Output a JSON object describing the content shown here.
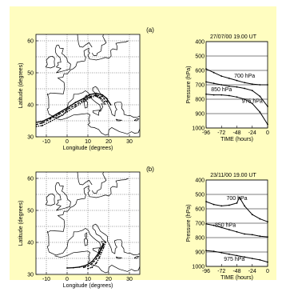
{
  "background_color": "#fffdc0",
  "panels": [
    {
      "label": "(a)",
      "date_time": "27/07/00  19.00 UT",
      "map": {
        "xlabel": "Longitude (degrees)",
        "ylabel": "Latitude (degrees)",
        "xticks": [
          "-10",
          "0",
          "10",
          "20",
          "30"
        ],
        "yticks": [
          "30",
          "40",
          "50",
          "60"
        ]
      }
    },
    {
      "label": "(b)",
      "date_time": "23/11/00  19.00 UT",
      "map": {
        "xlabel": "Longitude (degrees)",
        "ylabel": "Latitude (degrees)",
        "xticks": [
          "-10",
          "0",
          "10",
          "20",
          "30"
        ],
        "yticks": [
          "30",
          "40",
          "50",
          "60"
        ]
      }
    }
  ],
  "chart_data": [
    {
      "type": "line",
      "title": "(a)",
      "xlabel": "Longitude (degrees)",
      "ylabel": "Latitude (degrees)",
      "xlim": [
        -15,
        35
      ],
      "ylim": [
        30,
        62
      ],
      "series": [
        {
          "name": "700 hPa",
          "x": [
            -15,
            -12,
            -8,
            -4,
            0,
            4,
            8,
            11,
            14,
            17,
            19,
            21
          ],
          "y": [
            34.5,
            34.8,
            36,
            37.5,
            39,
            40.7,
            42,
            43.2,
            43.6,
            43.1,
            42,
            40
          ]
        },
        {
          "name": "850 hPa",
          "x": [
            -15,
            -12,
            -8,
            -4,
            0,
            4,
            8,
            11,
            14,
            17,
            19
          ],
          "y": [
            33.8,
            34.3,
            35.6,
            37,
            38.5,
            40,
            41.5,
            42.6,
            43.1,
            42.6,
            41
          ]
        },
        {
          "name": "975 hPa",
          "x": [
            -15,
            -12,
            -8,
            -4,
            0,
            4,
            8,
            11,
            14,
            16,
            18
          ],
          "y": [
            33.2,
            33.5,
            34.8,
            36.2,
            37.8,
            39.4,
            41,
            42.2,
            42.8,
            42.3,
            41
          ]
        }
      ]
    },
    {
      "type": "line",
      "title": "27/07/00  19.00 UT",
      "xlabel": "TIME (hours)",
      "ylabel": "Pressure (hPa)",
      "xticks": [
        -96,
        -72,
        -48,
        -24,
        0
      ],
      "yticks": [
        400,
        500,
        600,
        700,
        800,
        900,
        1000
      ],
      "xlim": [
        -96,
        0
      ],
      "ylim": [
        1000,
        400
      ],
      "annotations": [
        "700 hPa",
        "850 hPa",
        "975 hPa"
      ],
      "series": [
        {
          "name": "700 hPa",
          "x": [
            -96,
            -84,
            -72,
            -60,
            -48,
            -36,
            -24,
            -12,
            0
          ],
          "y": [
            590,
            615,
            640,
            655,
            670,
            685,
            695,
            700,
            700
          ]
        },
        {
          "name": "850 hPa",
          "x": [
            -96,
            -84,
            -72,
            -60,
            -48,
            -36,
            -24,
            -12,
            0
          ],
          "y": [
            680,
            690,
            700,
            710,
            715,
            725,
            740,
            780,
            850
          ]
        },
        {
          "name": "975 hPa",
          "x": [
            -96,
            -84,
            -72,
            -60,
            -48,
            -36,
            -24,
            -12,
            0
          ],
          "y": [
            765,
            770,
            770,
            775,
            785,
            800,
            830,
            890,
            975
          ]
        }
      ]
    },
    {
      "type": "line",
      "title": "(b)",
      "xlabel": "Longitude (degrees)",
      "ylabel": "Latitude (degrees)",
      "xlim": [
        -15,
        35
      ],
      "ylim": [
        30,
        62
      ],
      "series": [
        {
          "name": "700 hPa",
          "x": [
            0,
            3,
            6,
            9,
            12,
            14,
            16,
            17.5
          ],
          "y": [
            32,
            32.1,
            32.3,
            32.8,
            34,
            35.6,
            37.5,
            39.2
          ]
        },
        {
          "name": "850 hPa",
          "x": [
            8,
            10,
            12,
            14,
            15.5,
            16.5,
            17.5
          ],
          "y": [
            32.2,
            32.6,
            33.4,
            34.8,
            36.4,
            38,
            39.6
          ]
        },
        {
          "name": "975 hPa",
          "x": [
            10,
            12,
            14,
            15.5,
            16.5,
            17.5,
            18.5
          ],
          "y": [
            31.8,
            32.2,
            33.5,
            35.2,
            36.8,
            38.3,
            40
          ]
        }
      ]
    },
    {
      "type": "line",
      "title": "23/11/00  19.00 UT",
      "xlabel": "TIME (hours)",
      "ylabel": "Pressure (hPa)",
      "xticks": [
        -96,
        -72,
        -48,
        -24,
        0
      ],
      "yticks": [
        400,
        500,
        600,
        700,
        800,
        900,
        1000
      ],
      "xlim": [
        -96,
        0
      ],
      "ylim": [
        1000,
        400
      ],
      "annotations": [
        "700 hPa",
        "850 hPa",
        "975 hPa"
      ],
      "series": [
        {
          "name": "700 hPa",
          "x": [
            -96,
            -84,
            -72,
            -60,
            -48,
            -44,
            -36,
            -24,
            -12,
            0
          ],
          "y": [
            550,
            570,
            580,
            575,
            560,
            520,
            580,
            640,
            670,
            690
          ]
        },
        {
          "name": "850 hPa",
          "x": [
            -96,
            -84,
            -72,
            -60,
            -48,
            -36,
            -24,
            -12,
            0
          ],
          "y": [
            705,
            715,
            730,
            745,
            760,
            775,
            780,
            790,
            795
          ]
        },
        {
          "name": "975 hPa",
          "x": [
            -96,
            -84,
            -72,
            -60,
            -48,
            -36,
            -24,
            -12,
            0
          ],
          "y": [
            890,
            895,
            905,
            915,
            925,
            935,
            945,
            955,
            970
          ]
        }
      ]
    }
  ]
}
